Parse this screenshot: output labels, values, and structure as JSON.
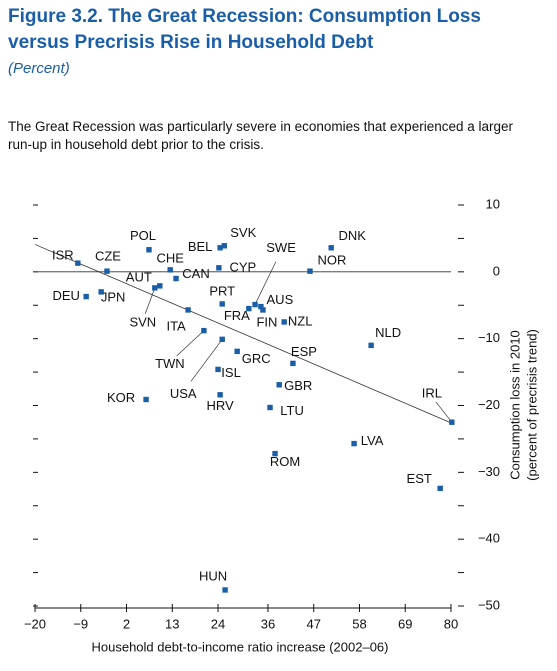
{
  "chart_data": {
    "type": "scatter",
    "title": [
      "Figure 3.2.  The Great Recession: Consumption Loss",
      "versus Precrisis Rise in Household Debt"
    ],
    "subtitle": "(Percent)",
    "description": "The Great Recession was particularly severe in economies that experienced a larger run-up in household debt prior to the crisis.",
    "x_label": "Household debt-to-income ratio increase (2002–06)",
    "y_label": [
      "Consumption loss in 2010",
      "(percent of precrisis trend)"
    ],
    "color": "#1a5ea8",
    "xlim": [
      -20,
      80
    ],
    "xticks": [
      {
        "value": -20,
        "label": "−20"
      },
      {
        "value": -9,
        "label": "−9"
      },
      2,
      13,
      24,
      36,
      47,
      58,
      69,
      80
    ],
    "ylim": [
      -50,
      10
    ],
    "yticks": [
      10,
      0,
      {
        "value": -10,
        "label": "−10"
      },
      {
        "value": -20,
        "label": "−20"
      },
      {
        "value": -30,
        "label": "−30"
      },
      {
        "value": -40,
        "label": "−40"
      },
      {
        "value": -50,
        "label": "−50"
      }
    ],
    "yticks_minor": [
      5,
      -5,
      -15,
      -25,
      -35,
      -45
    ],
    "hline": 0,
    "fit_line": {
      "x": [
        -20,
        80
      ],
      "y": [
        4.1,
        -22.6
      ]
    },
    "points": [
      {
        "label": "ISR",
        "x": -9.7,
        "y": 1.3
      },
      {
        "label": "CZE",
        "x": -2.7,
        "y": 0.1
      },
      {
        "label": "POL",
        "x": 7.4,
        "y": 3.3
      },
      {
        "label": "CHE",
        "x": 12.5,
        "y": 0.3
      },
      {
        "label": "AUT",
        "x": 10.0,
        "y": -2.1
      },
      {
        "label": "SVN",
        "x": 8.8,
        "y": -2.4
      },
      {
        "label": "CAN",
        "x": 13.9,
        "y": -1.0
      },
      {
        "label": "BEL",
        "x": 24.5,
        "y": 3.6
      },
      {
        "label": "SVK",
        "x": 25.5,
        "y": 3.9
      },
      {
        "label": "CYP",
        "x": 24.2,
        "y": 0.6
      },
      {
        "label": "DNK",
        "x": 51.2,
        "y": 3.6
      },
      {
        "label": "NOR",
        "x": 46.1,
        "y": 0.1
      },
      {
        "label": "SWE",
        "x": 32.9,
        "y": -4.9
      },
      {
        "label": "FRA",
        "x": 31.4,
        "y": -5.5
      },
      {
        "label": "AUS",
        "x": 34.3,
        "y": -5.2
      },
      {
        "label": "FIN",
        "x": 34.8,
        "y": -5.7
      },
      {
        "label": "NZL",
        "x": 39.9,
        "y": -7.5
      },
      {
        "label": "DEU",
        "x": -7.7,
        "y": -3.7
      },
      {
        "label": "JPN",
        "x": -4.1,
        "y": -3.0
      },
      {
        "label": "PRT",
        "x": 25.0,
        "y": -4.8
      },
      {
        "label": "ITA",
        "x": 16.8,
        "y": -5.7
      },
      {
        "label": "TWN",
        "x": 20.6,
        "y": -8.8
      },
      {
        "label": "USA",
        "x": 25.0,
        "y": -10.1
      },
      {
        "label": "GRC",
        "x": 28.6,
        "y": -11.9
      },
      {
        "label": "ISL",
        "x": 24.0,
        "y": -14.6
      },
      {
        "label": "ESP",
        "x": 42.0,
        "y": -13.7
      },
      {
        "label": "NLD",
        "x": 60.8,
        "y": -11.0
      },
      {
        "label": "KOR",
        "x": 6.7,
        "y": -19.1
      },
      {
        "label": "HRV",
        "x": 24.5,
        "y": -18.4
      },
      {
        "label": "GBR",
        "x": 38.7,
        "y": -16.9
      },
      {
        "label": "LTU",
        "x": 36.5,
        "y": -20.3
      },
      {
        "label": "IRL",
        "x": 80.2,
        "y": -22.5
      },
      {
        "label": "LVA",
        "x": 56.7,
        "y": -25.7
      },
      {
        "label": "ROM",
        "x": 37.7,
        "y": -27.2
      },
      {
        "label": "EST",
        "x": 77.4,
        "y": -32.4
      },
      {
        "label": "HUN",
        "x": 25.7,
        "y": -47.6
      }
    ]
  }
}
